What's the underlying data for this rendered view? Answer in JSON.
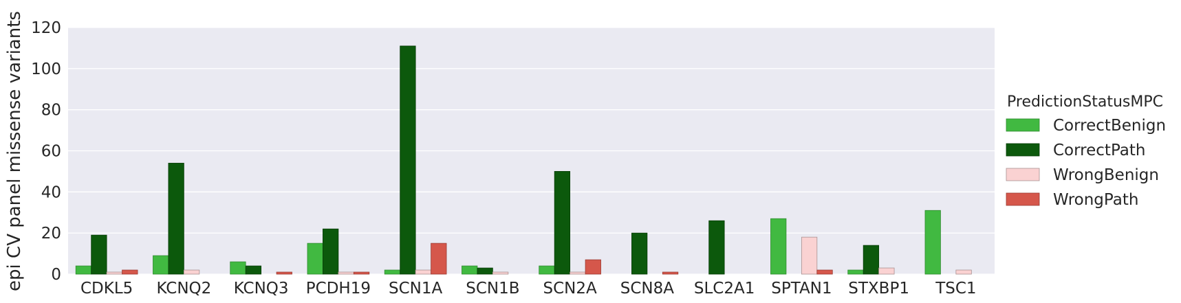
{
  "chart_data": {
    "type": "bar",
    "title": "",
    "xlabel": "",
    "ylabel": "epi CV panel missense variants",
    "ylim": [
      0,
      120
    ],
    "yticks": [
      0,
      20,
      40,
      60,
      80,
      100,
      120
    ],
    "grid": true,
    "legend_position": "right",
    "categories": [
      "CDKL5",
      "KCNQ2",
      "KCNQ3",
      "PCDH19",
      "SCN1A",
      "SCN1B",
      "SCN2A",
      "SCN8A",
      "SLC2A1",
      "SPTAN1",
      "STXBP1",
      "TSC1"
    ],
    "legend_title": "PredictionStatusMPC",
    "series": [
      {
        "name": "CorrectBenign",
        "color": "#41b941",
        "edge": "#2f8a2f",
        "values": [
          4,
          9,
          6,
          15,
          2,
          4,
          4,
          0,
          0,
          27,
          2,
          31
        ]
      },
      {
        "name": "CorrectPath",
        "color": "#0c590c",
        "edge": "#083d08",
        "values": [
          19,
          54,
          4,
          22,
          111,
          3,
          50,
          20,
          26,
          0,
          14,
          0
        ]
      },
      {
        "name": "WrongBenign",
        "color": "#fad2d2",
        "edge": "#a89090",
        "values": [
          1,
          2,
          0,
          1,
          2,
          1,
          1,
          0,
          0,
          18,
          3,
          2
        ]
      },
      {
        "name": "WrongPath",
        "color": "#d5574b",
        "edge": "#9a3a32",
        "values": [
          2,
          0,
          1,
          1,
          15,
          0,
          7,
          1,
          0,
          2,
          0,
          0
        ]
      }
    ]
  }
}
